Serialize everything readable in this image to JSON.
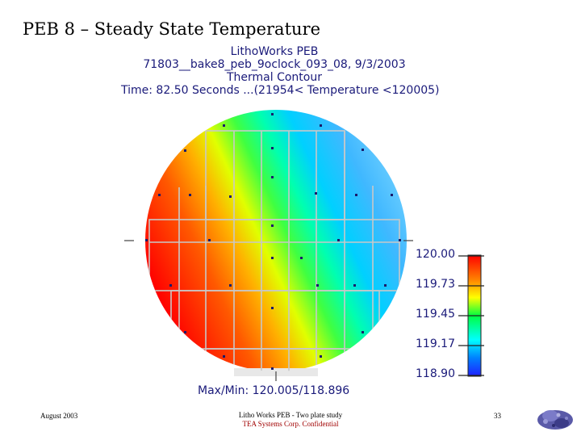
{
  "slide": {
    "title": "PEB 8 – Steady State Temperature"
  },
  "plot": {
    "header_lines": [
      "LithoWorks PEB",
      "71803__bake8_peb_9oclock_093_08, 9/3/2003",
      "Thermal Contour",
      "Time: 82.50 Seconds ...(21954< Temperature <120005)"
    ],
    "max_min": "Max/Min: 120.005/118.896",
    "scale_labels": [
      "120.00",
      "119.73",
      "119.45",
      "119.17",
      "118.90"
    ],
    "colors": {
      "hot": "#ff0000",
      "warm": "#ffff00",
      "mid": "#00ff40",
      "cool": "#00c0ff",
      "cold": "#2020ff"
    }
  },
  "footer": {
    "date": "August 2003",
    "center_line1": "Litho Works PEB - Two plate study",
    "center_line2": "TEA Systems Corp. Confidential",
    "page": "33"
  }
}
